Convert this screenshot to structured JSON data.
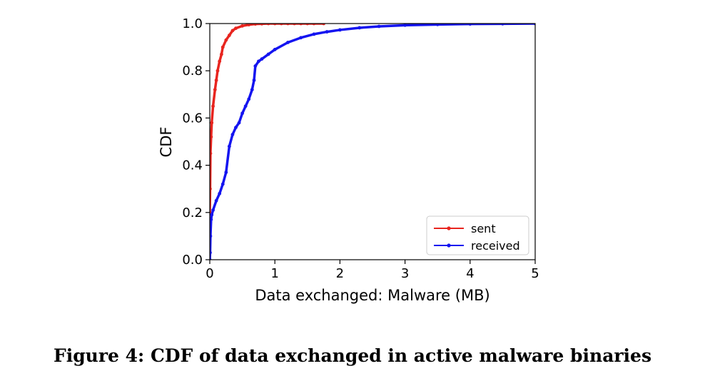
{
  "caption": "Figure 4: CDF of data exchanged in active malware binaries",
  "chart_data": {
    "type": "line",
    "title": "",
    "xlabel": "Data exchanged: Malware (MB)",
    "ylabel": "CDF",
    "xlim": [
      0,
      5
    ],
    "ylim": [
      0,
      1
    ],
    "x_ticks": [
      0,
      1,
      2,
      3,
      4,
      5
    ],
    "x_tick_labels": [
      "0",
      "1",
      "2",
      "3",
      "4",
      "5"
    ],
    "y_ticks": [
      0.0,
      0.2,
      0.4,
      0.6,
      0.8,
      1.0
    ],
    "y_tick_labels": [
      "0.0",
      "0.2",
      "0.4",
      "0.6",
      "0.8",
      "1.0"
    ],
    "grid": false,
    "legend_position": "bottom-right",
    "series": [
      {
        "name": "sent",
        "color": "#e8251f",
        "x": [
          0,
          0.005,
          0.01,
          0.02,
          0.03,
          0.05,
          0.08,
          0.1,
          0.12,
          0.15,
          0.18,
          0.2,
          0.25,
          0.3,
          0.35,
          0.4,
          0.5,
          0.6,
          0.7,
          0.8,
          0.9,
          1.0,
          1.1,
          1.2,
          1.3,
          1.4,
          1.5,
          1.6,
          1.75
        ],
        "y": [
          0.2,
          0.3,
          0.45,
          0.52,
          0.58,
          0.65,
          0.72,
          0.76,
          0.8,
          0.84,
          0.87,
          0.9,
          0.93,
          0.95,
          0.97,
          0.98,
          0.99,
          0.995,
          0.998,
          0.999,
          1.0,
          1.0,
          1.0,
          1.0,
          1.0,
          1.0,
          1.0,
          1.0,
          1.0
        ]
      },
      {
        "name": "received",
        "color": "#1414f0",
        "x": [
          0,
          0.005,
          0.01,
          0.02,
          0.03,
          0.05,
          0.1,
          0.15,
          0.2,
          0.25,
          0.3,
          0.35,
          0.4,
          0.45,
          0.5,
          0.55,
          0.6,
          0.65,
          0.68,
          0.7,
          0.75,
          0.8,
          0.9,
          1.0,
          1.2,
          1.4,
          1.6,
          1.8,
          2.0,
          2.3,
          2.6,
          3.0,
          3.5,
          4.0,
          4.5,
          5.0
        ],
        "y": [
          0.0,
          0.03,
          0.1,
          0.17,
          0.19,
          0.21,
          0.25,
          0.28,
          0.32,
          0.37,
          0.48,
          0.53,
          0.56,
          0.58,
          0.62,
          0.65,
          0.68,
          0.72,
          0.76,
          0.82,
          0.84,
          0.85,
          0.87,
          0.89,
          0.92,
          0.94,
          0.955,
          0.965,
          0.973,
          0.982,
          0.988,
          0.993,
          0.996,
          0.998,
          0.999,
          1.0
        ]
      }
    ]
  }
}
